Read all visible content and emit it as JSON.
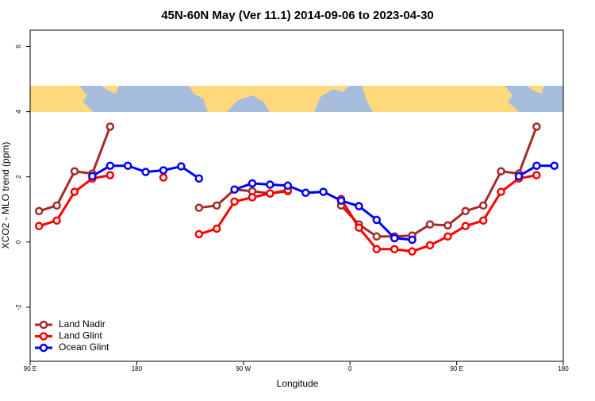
{
  "chart_data": {
    "type": "line",
    "title": "45N-60N May (Ver 11.1)   2014-09-06 to 2023-04-30",
    "x_label": "Longitude",
    "y_label": "XCO2 - MLO trend (ppm)",
    "x": [
      97.5,
      112.5,
      127.5,
      142.5,
      157.5,
      172.5,
      187.5,
      202.5,
      217.5,
      232.5,
      247.5,
      262.5,
      277.5,
      292.5,
      307.5,
      322.5,
      337.5,
      352.5,
      367.5,
      382.5,
      397.5,
      412.5,
      427.5,
      442.5,
      457.5,
      472.5,
      487.5,
      502.5,
      517.5,
      532.5
    ],
    "xlim": [
      90,
      540
    ],
    "xticks": [
      {
        "value": 90,
        "label": "90 E"
      },
      {
        "value": 180,
        "label": "180"
      },
      {
        "value": 270,
        "label": "90 W"
      },
      {
        "value": 360,
        "label": "0"
      },
      {
        "value": 450,
        "label": "90 E"
      },
      {
        "value": 540,
        "label": "180"
      }
    ],
    "ylim": [
      -3.66,
      6.5
    ],
    "yticks": [
      -2,
      0,
      2,
      4,
      6
    ],
    "legend": "bottom-left",
    "series": [
      {
        "name": "Land Nadir",
        "color": "#a52a2a",
        "values": [
          0.95,
          1.12,
          2.17,
          2.1,
          3.54,
          null,
          null,
          null,
          null,
          1.05,
          1.12,
          1.61,
          1.56,
          1.49,
          1.56,
          null,
          null,
          1.12,
          0.54,
          0.17,
          0.17,
          0.2,
          0.54,
          0.51,
          0.95,
          1.12,
          2.17,
          2.1,
          3.54,
          null
        ]
      },
      {
        "name": "Land Glint",
        "color": "#ff0000",
        "values": [
          0.49,
          0.66,
          1.54,
          1.95,
          2.05,
          null,
          null,
          1.98,
          null,
          0.24,
          0.41,
          1.24,
          1.37,
          1.49,
          1.59,
          null,
          null,
          1.32,
          0.44,
          -0.22,
          -0.22,
          -0.29,
          -0.1,
          0.17,
          0.49,
          0.66,
          1.54,
          1.95,
          2.05,
          null
        ]
      },
      {
        "name": "Ocean Glint",
        "color": "#0000ff",
        "values": [
          null,
          null,
          null,
          2.02,
          2.34,
          2.34,
          2.15,
          2.2,
          2.32,
          1.95,
          null,
          1.61,
          1.8,
          1.76,
          1.73,
          1.51,
          1.54,
          1.27,
          1.1,
          0.68,
          0.12,
          0.07,
          null,
          null,
          null,
          null,
          null,
          2.02,
          2.34,
          2.34
        ]
      }
    ]
  }
}
